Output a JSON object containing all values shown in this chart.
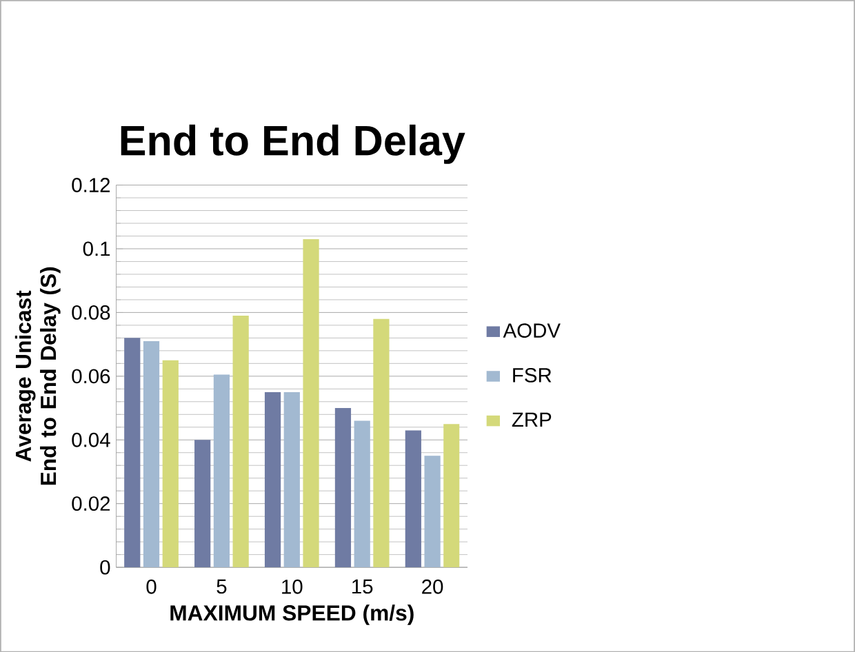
{
  "chart_data": {
    "type": "bar",
    "title": "End to End Delay",
    "xlabel": "MAXIMUM SPEED (m/s)",
    "ylabel": "Average Unicast End to End Delay (S)",
    "categories": [
      "0",
      "5",
      "10",
      "15",
      "20"
    ],
    "series": [
      {
        "name": "AODV",
        "color": "#6f7ba3",
        "values": [
          0.072,
          0.04,
          0.055,
          0.05,
          0.043
        ]
      },
      {
        "name": "FSR",
        "color": "#a2b9d1",
        "values": [
          0.071,
          0.0605,
          0.055,
          0.046,
          0.035
        ]
      },
      {
        "name": "ZRP",
        "color": "#d4d97a",
        "values": [
          0.065,
          0.079,
          0.103,
          0.078,
          0.045
        ]
      }
    ],
    "ylim": [
      0,
      0.12
    ],
    "yticks": [
      0,
      0.02,
      0.04,
      0.06,
      0.08,
      0.1,
      0.12
    ],
    "grid": "y",
    "legend": "right"
  }
}
